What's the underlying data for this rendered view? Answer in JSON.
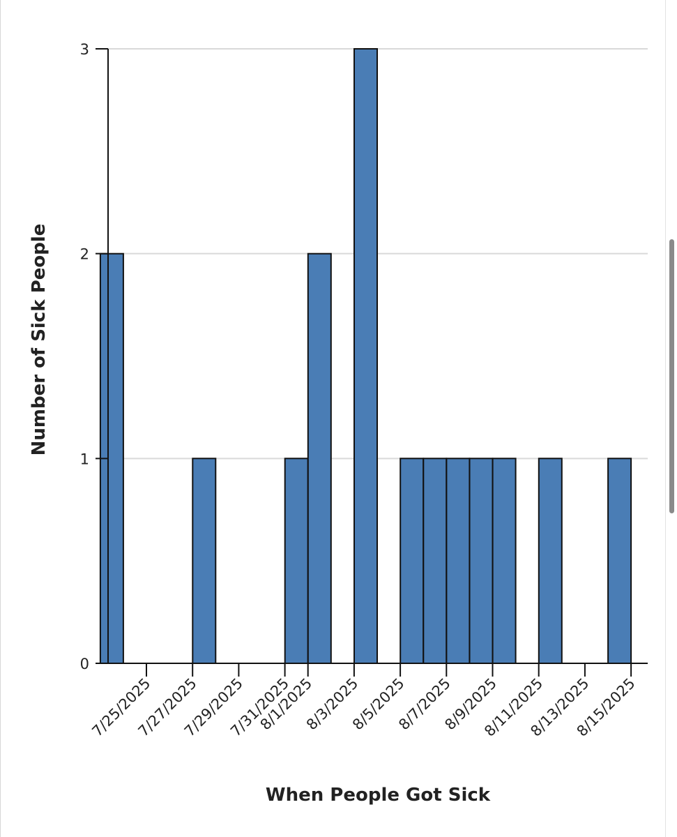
{
  "chart_data": {
    "type": "bar",
    "title": "",
    "xlabel": "When People Got Sick",
    "ylabel": "Number of Sick People",
    "ylim": [
      0,
      3
    ],
    "yticks": [
      "0",
      "1",
      "2",
      "3"
    ],
    "grid": "horizontal",
    "bar_color": "#4a7db5",
    "bar_outline_color": "#111111",
    "xticks": [
      "7/25/2025",
      "7/27/2025",
      "7/29/2025",
      "7/31/2025",
      "8/1/2025",
      "8/3/2025",
      "8/5/2025",
      "8/7/2025",
      "8/9/2025",
      "8/11/2025",
      "8/13/2025",
      "8/15/2025"
    ],
    "bars": [
      {
        "date": "7/24/2025",
        "value": 2
      },
      {
        "date": "7/28/2025",
        "value": 1
      },
      {
        "date": "8/1/2025",
        "value": 1
      },
      {
        "date": "8/2/2025",
        "value": 2
      },
      {
        "date": "8/4/2025",
        "value": 3
      },
      {
        "date": "8/6/2025",
        "value": 1
      },
      {
        "date": "8/7/2025",
        "value": 1
      },
      {
        "date": "8/8/2025",
        "value": 1
      },
      {
        "date": "8/9/2025",
        "value": 1
      },
      {
        "date": "8/10/2025",
        "value": 1
      },
      {
        "date": "8/12/2025",
        "value": 1
      },
      {
        "date": "8/15/2025",
        "value": 1
      }
    ]
  }
}
